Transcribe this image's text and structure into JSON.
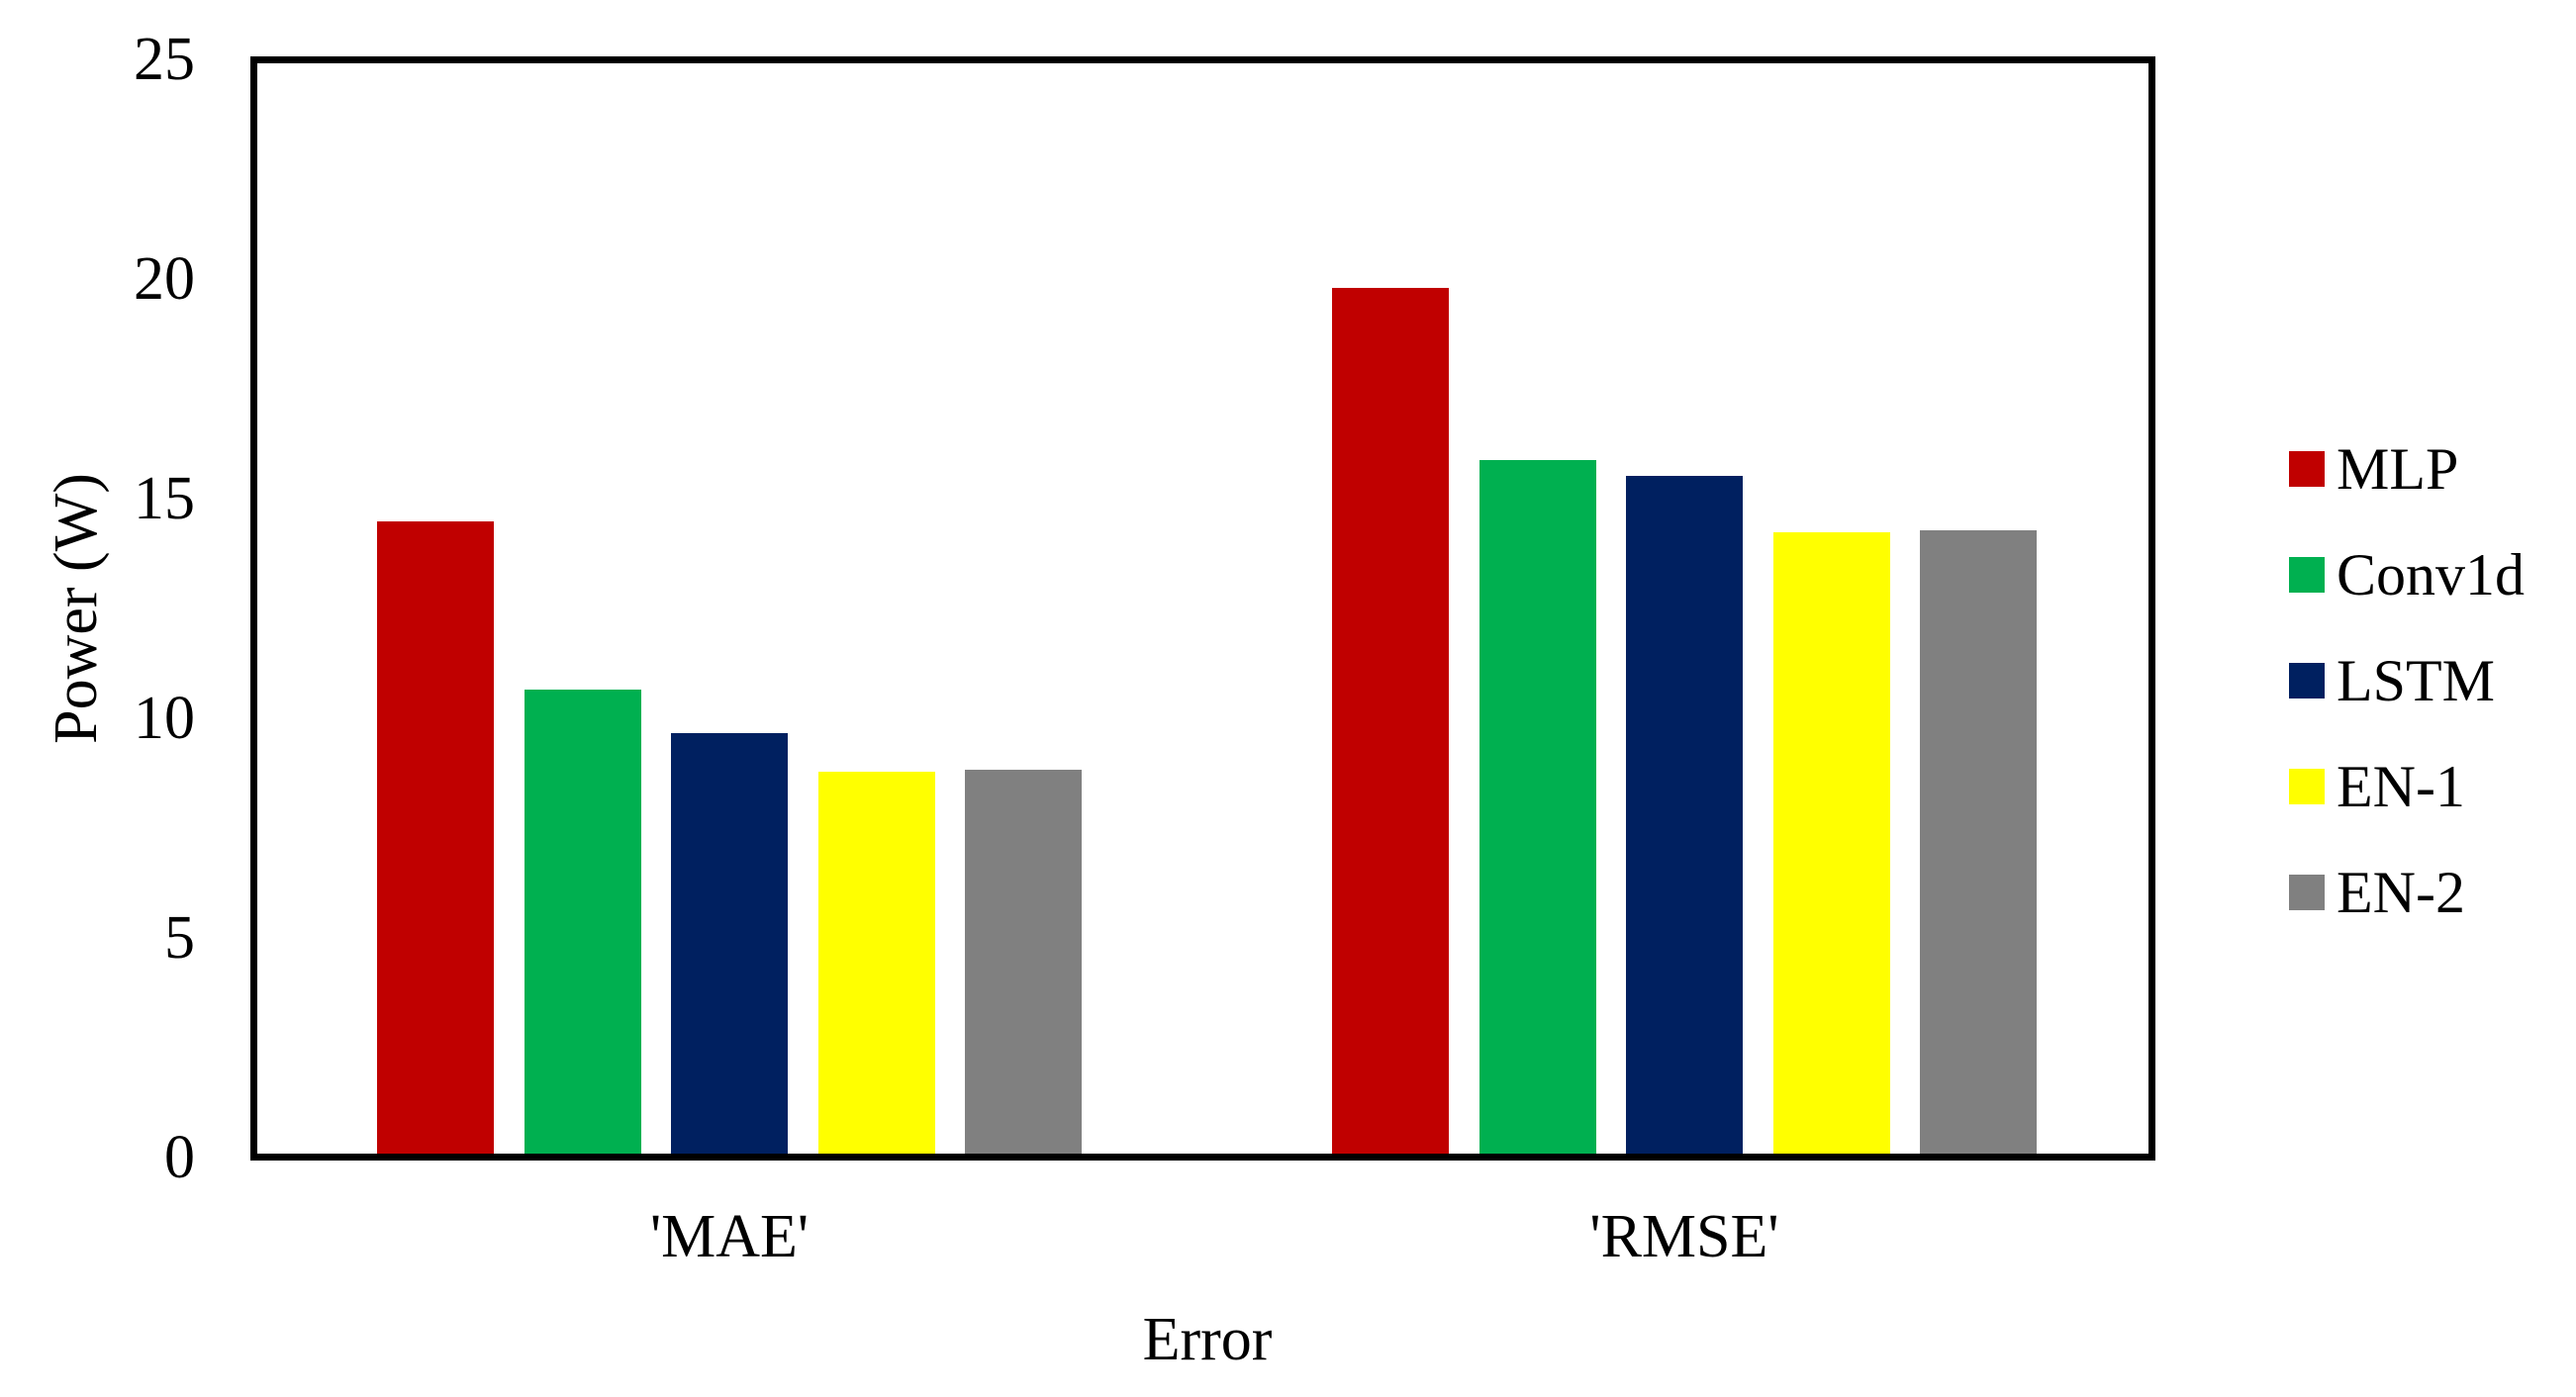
{
  "chart_data": {
    "type": "bar",
    "title": "",
    "xlabel": "Error",
    "ylabel": "Power (W)",
    "categories": [
      "'MAE'",
      "'RMSE'"
    ],
    "series": [
      {
        "name": "MLP",
        "color": "#C00000",
        "values": [
          14.5,
          19.85
        ]
      },
      {
        "name": "Conv1d",
        "color": "#00B050",
        "values": [
          10.65,
          15.9
        ]
      },
      {
        "name": "LSTM",
        "color": "#002060",
        "values": [
          9.65,
          15.55
        ]
      },
      {
        "name": "EN-1",
        "color": "#FFFF00",
        "values": [
          8.75,
          14.25
        ]
      },
      {
        "name": "EN-2",
        "color": "#808080",
        "values": [
          8.8,
          14.3
        ]
      }
    ],
    "ylim": [
      0,
      25
    ],
    "yticks": [
      0,
      5,
      10,
      15,
      20,
      25
    ],
    "grid": false,
    "legend_position": "right",
    "axis_color": "#000000"
  }
}
